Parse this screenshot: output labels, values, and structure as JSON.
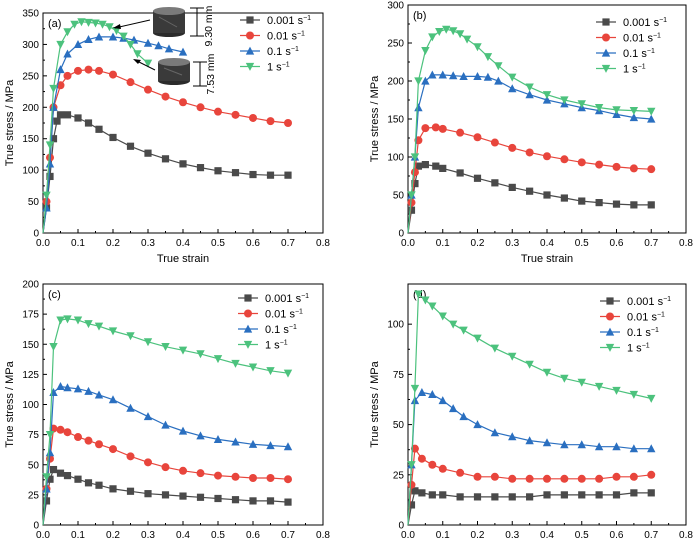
{
  "colors": {
    "0.001": "#4a4a4a",
    "0.01": "#e8453c",
    "0.1": "#2a6fc0",
    "1": "#4cc27d"
  },
  "markers": {
    "0.001": "square",
    "0.01": "circle",
    "0.1": "triangle-up",
    "1": "triangle-down"
  },
  "chart_data": [
    {
      "type": "line",
      "panel_label": "(a)",
      "xlabel": "True strain",
      "ylabel": "True stress / MPa",
      "xlim": [
        0,
        0.8
      ],
      "ylim": [
        0,
        350
      ],
      "xticks": [
        "0.0",
        "0.1",
        "0.2",
        "0.3",
        "0.4",
        "0.5",
        "0.6",
        "0.7",
        "0.8"
      ],
      "yticks": [
        "0",
        "50",
        "100",
        "150",
        "200",
        "250",
        "300",
        "350"
      ],
      "legend_placement": "top-right",
      "annotations": [
        "9.30 mm",
        "7.53 mm"
      ],
      "series": [
        {
          "key": "0.001",
          "name": "0.001 s",
          "sup": "−1",
          "x": [
            0,
            0.01,
            0.02,
            0.03,
            0.04,
            0.05,
            0.07,
            0.1,
            0.13,
            0.16,
            0.2,
            0.25,
            0.3,
            0.35,
            0.4,
            0.45,
            0.5,
            0.55,
            0.6,
            0.65,
            0.7
          ],
          "y": [
            0,
            40,
            90,
            150,
            178,
            188,
            188,
            183,
            175,
            165,
            152,
            138,
            127,
            118,
            110,
            104,
            99,
            96,
            93,
            92,
            92
          ]
        },
        {
          "key": "0.01",
          "name": "0.01 s",
          "sup": "−1",
          "x": [
            0,
            0.01,
            0.02,
            0.03,
            0.05,
            0.07,
            0.1,
            0.13,
            0.16,
            0.2,
            0.25,
            0.3,
            0.35,
            0.4,
            0.45,
            0.5,
            0.55,
            0.6,
            0.65,
            0.7
          ],
          "y": [
            0,
            50,
            120,
            200,
            235,
            250,
            258,
            260,
            258,
            252,
            240,
            228,
            217,
            208,
            200,
            193,
            188,
            183,
            178,
            175
          ]
        },
        {
          "key": "0.1",
          "name": "0.1 s",
          "sup": "−1",
          "x": [
            0,
            0.01,
            0.02,
            0.03,
            0.05,
            0.07,
            0.1,
            0.13,
            0.16,
            0.2,
            0.23,
            0.26,
            0.3,
            0.33,
            0.36,
            0.4
          ],
          "y": [
            0,
            40,
            110,
            200,
            260,
            285,
            300,
            308,
            312,
            312,
            310,
            307,
            302,
            298,
            293,
            288
          ]
        },
        {
          "key": "1",
          "name": "1 s",
          "sup": "−1",
          "x": [
            0,
            0.01,
            0.02,
            0.03,
            0.05,
            0.07,
            0.09,
            0.11,
            0.13,
            0.15,
            0.17,
            0.19,
            0.21,
            0.23,
            0.25,
            0.27,
            0.3
          ],
          "y": [
            0,
            60,
            140,
            230,
            300,
            320,
            332,
            336,
            335,
            334,
            332,
            328,
            322,
            313,
            300,
            285,
            270
          ]
        }
      ]
    },
    {
      "type": "line",
      "panel_label": "(b)",
      "xlabel": "True strain",
      "ylabel": "True stress / MPa",
      "xlim": [
        0,
        0.8
      ],
      "ylim": [
        0,
        300
      ],
      "xticks": [
        "0.0",
        "0.1",
        "0.2",
        "0.3",
        "0.4",
        "0.5",
        "0.6",
        "0.7",
        "0.8"
      ],
      "yticks": [
        "0",
        "50",
        "100",
        "150",
        "200",
        "250",
        "300"
      ],
      "legend_placement": "top-right",
      "series": [
        {
          "key": "0.001",
          "name": "0.001 s",
          "sup": "−1",
          "x": [
            0,
            0.01,
            0.02,
            0.03,
            0.05,
            0.08,
            0.1,
            0.15,
            0.2,
            0.25,
            0.3,
            0.35,
            0.4,
            0.45,
            0.5,
            0.55,
            0.6,
            0.65,
            0.7
          ],
          "y": [
            0,
            30,
            65,
            88,
            90,
            88,
            85,
            79,
            72,
            66,
            60,
            55,
            50,
            46,
            42,
            40,
            38,
            37,
            37
          ]
        },
        {
          "key": "0.01",
          "name": "0.01 s",
          "sup": "−1",
          "x": [
            0,
            0.01,
            0.02,
            0.03,
            0.05,
            0.08,
            0.1,
            0.15,
            0.2,
            0.25,
            0.3,
            0.35,
            0.4,
            0.45,
            0.5,
            0.55,
            0.6,
            0.65,
            0.7
          ],
          "y": [
            0,
            40,
            80,
            122,
            138,
            139,
            137,
            132,
            126,
            119,
            112,
            106,
            101,
            97,
            93,
            90,
            87,
            85,
            84
          ]
        },
        {
          "key": "0.1",
          "name": "0.1 s",
          "sup": "−1",
          "x": [
            0,
            0.01,
            0.02,
            0.03,
            0.05,
            0.07,
            0.1,
            0.13,
            0.16,
            0.2,
            0.23,
            0.26,
            0.3,
            0.35,
            0.4,
            0.45,
            0.5,
            0.55,
            0.6,
            0.65,
            0.7
          ],
          "y": [
            0,
            50,
            100,
            165,
            200,
            208,
            208,
            207,
            206,
            206,
            205,
            200,
            190,
            182,
            175,
            170,
            165,
            161,
            156,
            152,
            150
          ]
        },
        {
          "key": "1",
          "name": "1 s",
          "sup": "−1",
          "x": [
            0,
            0.01,
            0.02,
            0.03,
            0.05,
            0.07,
            0.09,
            0.11,
            0.13,
            0.15,
            0.17,
            0.2,
            0.23,
            0.26,
            0.3,
            0.35,
            0.4,
            0.45,
            0.5,
            0.55,
            0.6,
            0.65,
            0.7
          ],
          "y": [
            0,
            50,
            100,
            200,
            240,
            258,
            265,
            268,
            266,
            262,
            255,
            245,
            232,
            220,
            205,
            192,
            182,
            175,
            170,
            165,
            162,
            161,
            160
          ]
        }
      ]
    },
    {
      "type": "line",
      "panel_label": "(c)",
      "xlabel": "True strain",
      "ylabel": "True stress / MPa",
      "xlim": [
        0,
        0.8
      ],
      "ylim": [
        0,
        200
      ],
      "xticks": [
        "0.0",
        "0.1",
        "0.2",
        "0.3",
        "0.4",
        "0.5",
        "0.6",
        "0.7",
        "0.8"
      ],
      "yticks": [
        "0",
        "25",
        "50",
        "75",
        "100",
        "125",
        "150",
        "175",
        "200"
      ],
      "legend_placement": "top-right",
      "series": [
        {
          "key": "0.001",
          "name": "0.001 s",
          "sup": "−1",
          "x": [
            0,
            0.01,
            0.02,
            0.03,
            0.05,
            0.07,
            0.1,
            0.13,
            0.16,
            0.2,
            0.25,
            0.3,
            0.35,
            0.4,
            0.45,
            0.5,
            0.55,
            0.6,
            0.65,
            0.7
          ],
          "y": [
            0,
            20,
            38,
            46,
            43,
            41,
            38,
            35,
            33,
            30,
            28,
            26,
            25,
            24,
            23,
            22,
            21,
            20,
            20,
            19
          ]
        },
        {
          "key": "0.01",
          "name": "0.01 s",
          "sup": "−1",
          "x": [
            0,
            0.01,
            0.02,
            0.03,
            0.05,
            0.07,
            0.1,
            0.13,
            0.16,
            0.2,
            0.25,
            0.3,
            0.35,
            0.4,
            0.45,
            0.5,
            0.55,
            0.6,
            0.65,
            0.7
          ],
          "y": [
            0,
            30,
            55,
            80,
            79,
            77,
            73,
            70,
            67,
            63,
            57,
            52,
            48,
            45,
            43,
            41,
            40,
            39,
            39,
            38
          ]
        },
        {
          "key": "0.1",
          "name": "0.1 s",
          "sup": "−1",
          "x": [
            0,
            0.01,
            0.02,
            0.03,
            0.05,
            0.07,
            0.1,
            0.13,
            0.16,
            0.2,
            0.25,
            0.3,
            0.35,
            0.4,
            0.45,
            0.5,
            0.55,
            0.6,
            0.65,
            0.7
          ],
          "y": [
            0,
            30,
            60,
            110,
            115,
            114,
            113,
            111,
            108,
            104,
            97,
            90,
            83,
            78,
            74,
            71,
            69,
            67,
            66,
            65
          ]
        },
        {
          "key": "1",
          "name": "1 s",
          "sup": "−1",
          "x": [
            0,
            0.01,
            0.02,
            0.03,
            0.05,
            0.07,
            0.1,
            0.13,
            0.16,
            0.2,
            0.25,
            0.3,
            0.35,
            0.4,
            0.45,
            0.5,
            0.55,
            0.6,
            0.65,
            0.7
          ],
          "y": [
            0,
            40,
            75,
            148,
            170,
            171,
            170,
            167,
            165,
            161,
            157,
            152,
            148,
            145,
            142,
            138,
            134,
            131,
            128,
            126
          ]
        }
      ]
    },
    {
      "type": "line",
      "panel_label": "(d)",
      "xlabel": "True strain",
      "ylabel": "True stress / MPa",
      "xlim": [
        0,
        0.8
      ],
      "ylim": [
        0,
        120
      ],
      "xticks": [
        "0.0",
        "0.1",
        "0.2",
        "0.3",
        "0.4",
        "0.5",
        "0.6",
        "0.7",
        "0.8"
      ],
      "yticks": [
        "0",
        "25",
        "50",
        "75",
        "100"
      ],
      "legend_placement": "top-right",
      "series": [
        {
          "key": "0.001",
          "name": "0.001 s",
          "sup": "−1",
          "x": [
            0,
            0.01,
            0.02,
            0.04,
            0.07,
            0.1,
            0.15,
            0.2,
            0.25,
            0.3,
            0.35,
            0.4,
            0.45,
            0.5,
            0.55,
            0.6,
            0.65,
            0.7
          ],
          "y": [
            0,
            10,
            17,
            16,
            15,
            15,
            14,
            14,
            14,
            14,
            14,
            15,
            15,
            15,
            15,
            15,
            16,
            16
          ]
        },
        {
          "key": "0.01",
          "name": "0.01 s",
          "sup": "−1",
          "x": [
            0,
            0.01,
            0.02,
            0.04,
            0.07,
            0.1,
            0.15,
            0.2,
            0.25,
            0.3,
            0.35,
            0.4,
            0.45,
            0.5,
            0.55,
            0.6,
            0.65,
            0.7
          ],
          "y": [
            0,
            20,
            38,
            33,
            30,
            28,
            26,
            24,
            24,
            23,
            23,
            23,
            23,
            23,
            23,
            24,
            24,
            25
          ]
        },
        {
          "key": "0.1",
          "name": "0.1 s",
          "sup": "−1",
          "x": [
            0,
            0.01,
            0.02,
            0.04,
            0.07,
            0.1,
            0.13,
            0.16,
            0.2,
            0.25,
            0.3,
            0.35,
            0.4,
            0.45,
            0.5,
            0.55,
            0.6,
            0.65,
            0.7
          ],
          "y": [
            0,
            30,
            62,
            66,
            65,
            62,
            58,
            54,
            50,
            46,
            44,
            42,
            41,
            40,
            40,
            39,
            39,
            38,
            38
          ]
        },
        {
          "key": "1",
          "name": "1 s",
          "sup": "−1",
          "x": [
            0,
            0.01,
            0.02,
            0.03,
            0.05,
            0.07,
            0.1,
            0.13,
            0.16,
            0.2,
            0.25,
            0.3,
            0.35,
            0.4,
            0.45,
            0.5,
            0.55,
            0.6,
            0.65,
            0.7
          ],
          "y": [
            0,
            30,
            68,
            115,
            112,
            109,
            104,
            100,
            97,
            93,
            88,
            84,
            80,
            76,
            73,
            71,
            69,
            67,
            65,
            63
          ]
        }
      ]
    }
  ]
}
